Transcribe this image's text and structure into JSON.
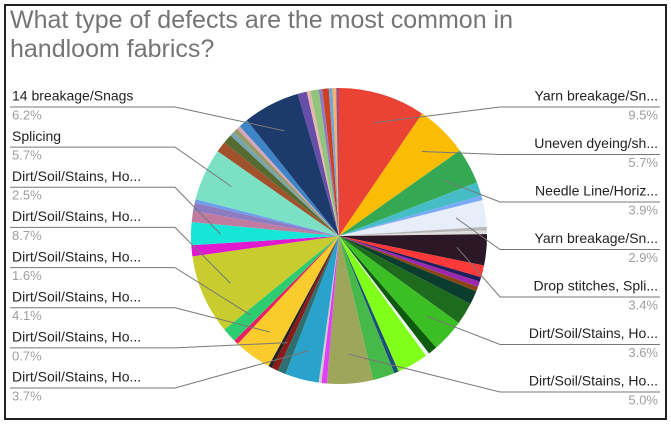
{
  "chart_data": {
    "type": "pie",
    "title": "What type of defects are the most common in handloom fabrics?",
    "categories": [
      "Yarn breakage/Sn...",
      "Uneven dyeing/sh...",
      "Needle Line/Horiz...",
      null,
      null,
      "Yarn breakage/Sn...",
      null,
      null,
      "Drop stitches, Spli...",
      null,
      null,
      null,
      null,
      null,
      null,
      "Dirt/Soil/Stains, Ho...",
      null,
      null,
      null,
      null,
      null,
      "Dirt/Soil/Stains, Ho...",
      null,
      null,
      "Dirt/Soil/Stains, Ho...",
      null,
      "Dirt/Soil/Stains, Ho...",
      null,
      "Dirt/Soil/Stains, Ho...",
      null,
      "Dirt/Soil/Stains, Ho...",
      "Dirt/Soil/Stains, Ho...",
      null,
      "Dirt/Soil/Stains, Ho...",
      null,
      null,
      null,
      "Splicing",
      null,
      null,
      null,
      null,
      null,
      null,
      "14 breakage/Snags",
      null,
      null,
      null,
      null,
      null,
      null,
      null,
      null
    ],
    "values": [
      9.5,
      5.7,
      3.9,
      1.5,
      0.5,
      2.9,
      0.4,
      0.4,
      3.4,
      1.3,
      0.5,
      0.6,
      0.5,
      1.5,
      2.4,
      3.6,
      1.0,
      0.4,
      3.4,
      0.5,
      2.4,
      5.0,
      0.6,
      0.3,
      3.7,
      0.9,
      0.7,
      0.4,
      4.1,
      0.5,
      1.6,
      8.7,
      1.2,
      2.5,
      1.2,
      0.9,
      0.4,
      5.7,
      1.2,
      1.0,
      0.5,
      0.5,
      0.4,
      1.0,
      6.2,
      1.0,
      0.4,
      0.9,
      0.4,
      0.7,
      0.4,
      0.4,
      0.3
    ],
    "value_labels": [
      "9.5%",
      "5.7%",
      "3.9%",
      null,
      null,
      "2.9%",
      null,
      null,
      "3.4%",
      null,
      null,
      null,
      null,
      null,
      null,
      "3.6%",
      null,
      null,
      null,
      null,
      null,
      "5.0%",
      null,
      null,
      "3.7%",
      null,
      "0.7%",
      null,
      "4.1%",
      null,
      "1.6%",
      "8.7%",
      null,
      "2.5%",
      null,
      null,
      null,
      "5.7%",
      null,
      null,
      null,
      null,
      null,
      null,
      "6.2%",
      null,
      null,
      null,
      null,
      null,
      null,
      null,
      null
    ],
    "colors": [
      "#ea4335",
      "#fbbc04",
      "#34a853",
      "#46bdc6",
      "#7baaf7",
      "#e8eef9",
      "#b7b7b7",
      "#dddddd",
      "#2b1725",
      "#ff3838",
      "#1f1f5e",
      "#9c27b0",
      "#8b4513",
      "#0b3d2e",
      "#1e6b1e",
      "#3bbf25",
      "#0d5c0d",
      "#f0f0f0",
      "#7fff1a",
      "#1a4f7a",
      "#47b84a",
      "#9ea65b",
      "#e040fb",
      "#cccccc",
      "#29a3cc",
      "#2f6f6f",
      "#8b1a1a",
      "#222222",
      "#f9cb2d",
      "#e91e63",
      "#2ecc71",
      "#c8cc2e",
      "#e018d0",
      "#15e6d6",
      "#c27ba0",
      "#8e7cc3",
      "#6d9eeb",
      "#7be0c4",
      "#a0522d",
      "#556b2f",
      "#76a5af",
      "#999966",
      "#d5a6bd",
      "#3d85c6",
      "#1c3a6b",
      "#674ea7",
      "#e6b8af",
      "#93c47d",
      "#8e7cc3",
      "#cc4125",
      "#6fa8dc",
      "#f6b26b",
      "#a64d79"
    ]
  }
}
